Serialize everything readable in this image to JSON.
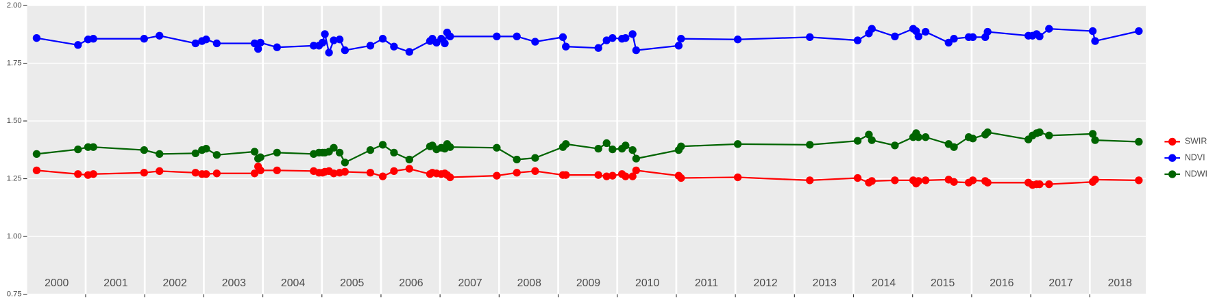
{
  "chart_data": {
    "type": "line",
    "x": [
      2000.17,
      2000.87,
      2001.04,
      2001.13,
      2001.99,
      2002.25,
      2002.86,
      2002.97,
      2003.04,
      2003.22,
      2003.86,
      2003.92,
      2003.96,
      2004.24,
      2004.86,
      2004.95,
      2005.01,
      2005.05,
      2005.12,
      2005.2,
      2005.3,
      2005.39,
      2005.82,
      2006.03,
      2006.22,
      2006.48,
      2006.83,
      2006.87,
      2006.94,
      2007.02,
      2007.08,
      2007.12,
      2007.17,
      2007.96,
      2008.3,
      2008.61,
      2009.08,
      2009.13,
      2009.68,
      2009.82,
      2009.92,
      2010.08,
      2010.14,
      2010.26,
      2010.32,
      2011.04,
      2011.08,
      2012.04,
      2013.26,
      2014.07,
      2014.26,
      2014.31,
      2014.7,
      2015.01,
      2015.06,
      2015.1,
      2015.22,
      2015.61,
      2015.7,
      2015.95,
      2016.02,
      2016.23,
      2016.27,
      2016.96,
      2017.03,
      2017.1,
      2017.15,
      2017.31,
      2018.05,
      2018.09,
      2018.83
    ],
    "series": [
      {
        "name": "SWIR",
        "color": "#ff0000",
        "values": [
          1.286,
          1.27,
          1.266,
          1.27,
          1.276,
          1.283,
          1.276,
          1.27,
          1.27,
          1.273,
          1.273,
          1.303,
          1.286,
          1.286,
          1.283,
          1.276,
          1.276,
          1.28,
          1.283,
          1.273,
          1.276,
          1.28,
          1.276,
          1.26,
          1.283,
          1.293,
          1.27,
          1.276,
          1.273,
          1.27,
          1.273,
          1.266,
          1.256,
          1.263,
          1.276,
          1.283,
          1.266,
          1.266,
          1.266,
          1.26,
          1.263,
          1.27,
          1.26,
          1.26,
          1.286,
          1.263,
          1.253,
          1.256,
          1.243,
          1.253,
          1.233,
          1.24,
          1.243,
          1.243,
          1.229,
          1.24,
          1.243,
          1.246,
          1.236,
          1.233,
          1.243,
          1.24,
          1.233,
          1.233,
          1.223,
          1.226,
          1.226,
          1.226,
          1.236,
          1.246,
          1.243
        ]
      },
      {
        "name": "NDVI",
        "color": "#0000ff",
        "values": [
          1.859,
          1.829,
          1.853,
          1.856,
          1.856,
          1.869,
          1.836,
          1.846,
          1.853,
          1.836,
          1.836,
          1.812,
          1.839,
          1.819,
          1.826,
          1.826,
          1.839,
          1.876,
          1.796,
          1.849,
          1.853,
          1.806,
          1.826,
          1.856,
          1.822,
          1.799,
          1.846,
          1.856,
          1.839,
          1.856,
          1.836,
          1.883,
          1.866,
          1.866,
          1.866,
          1.843,
          1.863,
          1.822,
          1.816,
          1.849,
          1.859,
          1.856,
          1.859,
          1.876,
          1.806,
          1.826,
          1.856,
          1.853,
          1.863,
          1.849,
          1.879,
          1.899,
          1.866,
          1.899,
          1.889,
          1.866,
          1.886,
          1.839,
          1.856,
          1.863,
          1.863,
          1.863,
          1.886,
          1.869,
          1.869,
          1.876,
          1.866,
          1.899,
          1.889,
          1.846,
          1.889
        ]
      },
      {
        "name": "NDWI",
        "color": "#006400",
        "values": [
          1.357,
          1.377,
          1.387,
          1.387,
          1.374,
          1.357,
          1.36,
          1.374,
          1.38,
          1.353,
          1.367,
          1.337,
          1.343,
          1.363,
          1.357,
          1.363,
          1.363,
          1.363,
          1.367,
          1.384,
          1.363,
          1.32,
          1.374,
          1.397,
          1.363,
          1.333,
          1.39,
          1.394,
          1.377,
          1.384,
          1.38,
          1.4,
          1.387,
          1.384,
          1.333,
          1.34,
          1.387,
          1.4,
          1.38,
          1.404,
          1.377,
          1.38,
          1.394,
          1.374,
          1.337,
          1.374,
          1.39,
          1.4,
          1.397,
          1.414,
          1.441,
          1.417,
          1.394,
          1.43,
          1.447,
          1.43,
          1.43,
          1.4,
          1.387,
          1.43,
          1.424,
          1.441,
          1.451,
          1.42,
          1.437,
          1.447,
          1.451,
          1.437,
          1.444,
          1.417,
          1.41
        ]
      }
    ],
    "xlim": [
      2000.01,
      2018.95
    ],
    "xticks": [
      2001,
      2002,
      2003,
      2004,
      2005,
      2006,
      2007,
      2008,
      2009,
      2010,
      2011,
      2012,
      2013,
      2014,
      2015,
      2016,
      2017,
      2018
    ],
    "ylim": [
      0.75,
      2
    ],
    "yticks": [
      0.75,
      {
        "value": 1,
        "label": "1.00"
      },
      1.25,
      {
        "value": 1.5,
        "label": "1.50"
      },
      1.75,
      {
        "value": 2,
        "label": "2.00"
      }
    ],
    "year_labels": [
      "2000",
      "2001",
      "2002",
      "2003",
      "2004",
      "2005",
      "2006",
      "2007",
      "2008",
      "2009",
      "2010",
      "2011",
      "2012",
      "2013",
      "2014",
      "2015",
      "2016",
      "2017",
      "2018"
    ],
    "grid": true,
    "legend": "right"
  }
}
